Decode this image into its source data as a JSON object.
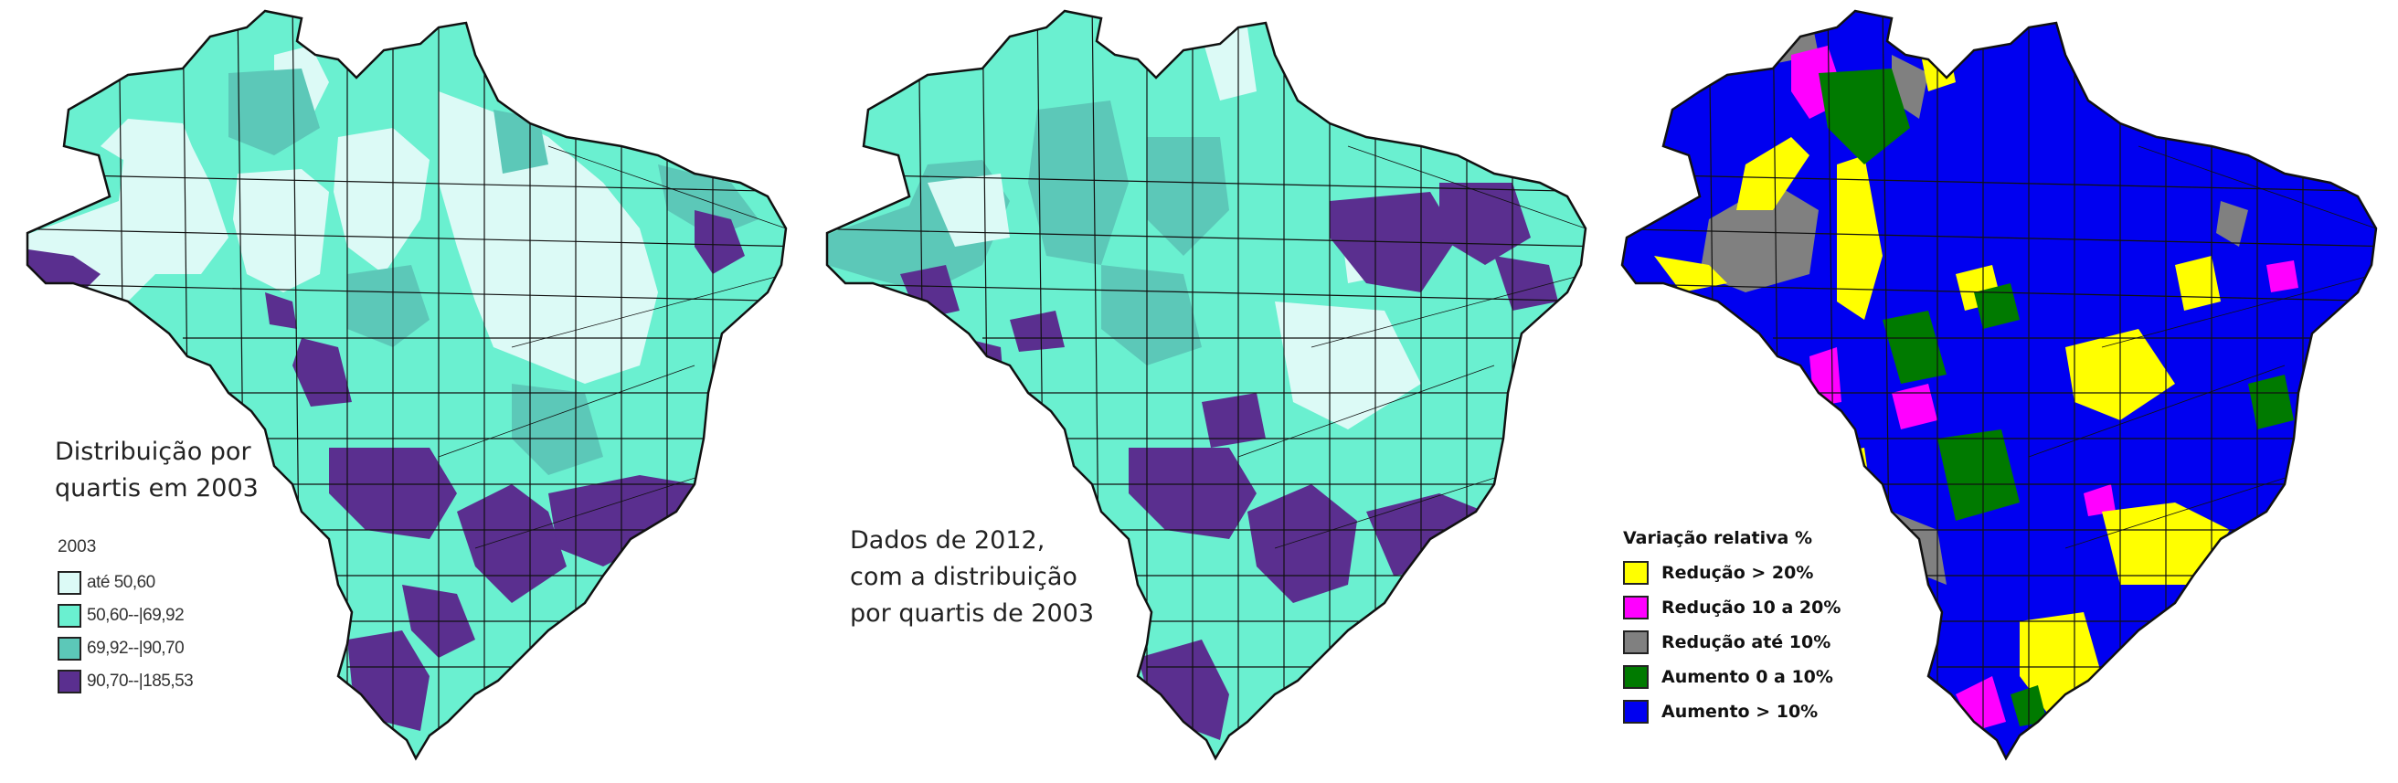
{
  "colors": {
    "q1": "#dcfaf6",
    "q2": "#6af0d0",
    "q3": "#5cc8b8",
    "q4": "#5a2f8f",
    "red20": "#ffff00",
    "red10": "#ff00ff",
    "red0": "#808080",
    "aum0": "#007a00",
    "aum10": "#0000f0",
    "border": "#111111"
  },
  "map1": {
    "caption": [
      "Distribuição por",
      "quartis em 2003"
    ],
    "legend_title": "2003",
    "legend": [
      {
        "label": "até 50,60",
        "color": "#dcfaf6"
      },
      {
        "label": "50,60--|69,92",
        "color": "#6af0d0"
      },
      {
        "label": "69,92--|90,70",
        "color": "#5cc8b8"
      },
      {
        "label": "90,70--|185,53",
        "color": "#5a2f8f"
      }
    ]
  },
  "map2": {
    "caption": [
      "Dados de 2012,",
      "com a distribuição",
      "por quartis de 2003"
    ]
  },
  "map3": {
    "legend_title": "Variação relativa %",
    "legend": [
      {
        "label": "Redução > 20%",
        "color": "#ffff00"
      },
      {
        "label": "Redução 10 a 20%",
        "color": "#ff00ff"
      },
      {
        "label": "Redução até 10%",
        "color": "#808080"
      },
      {
        "label": "Aumento 0 a 10%",
        "color": "#007a00"
      },
      {
        "label": "Aumento > 10%",
        "color": "#0000f0"
      }
    ]
  }
}
